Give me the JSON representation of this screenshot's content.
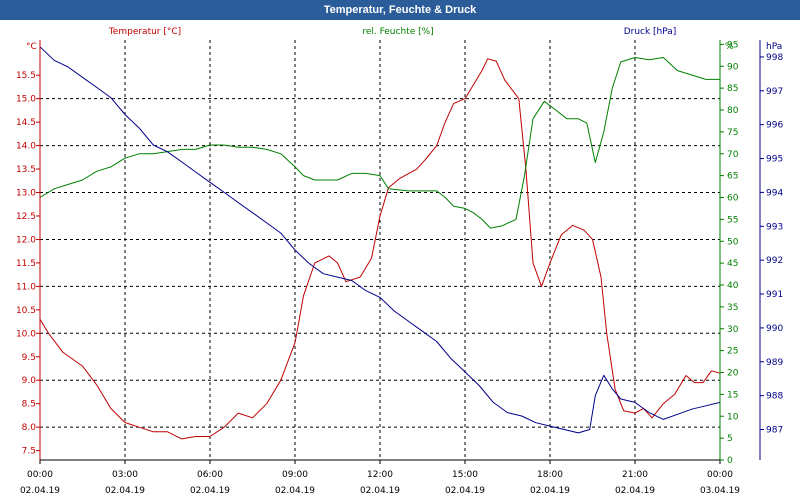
{
  "window": {
    "title": "Temperatur, Feuchte & Druck"
  },
  "chart_data": {
    "type": "line",
    "title": "Temperatur, Feuchte & Druck",
    "x_ticks": [
      {
        "time": "00:00",
        "date": "02.04.19"
      },
      {
        "time": "03:00",
        "date": "02.04.19"
      },
      {
        "time": "06:00",
        "date": "02.04.19"
      },
      {
        "time": "09:00",
        "date": "02.04.19"
      },
      {
        "time": "12:00",
        "date": "02.04.19"
      },
      {
        "time": "15:00",
        "date": "02.04.19"
      },
      {
        "time": "18:00",
        "date": "02.04.19"
      },
      {
        "time": "21:00",
        "date": "02.04.19"
      },
      {
        "time": "00:00",
        "date": "03.04.19"
      }
    ],
    "xlim": [
      0,
      24
    ],
    "grid": true,
    "axes": {
      "temp": {
        "label": "Temperatur [°C]",
        "unit": "°C",
        "color": "#c00000",
        "ylim": [
          7.3,
          16.25
        ],
        "ticks": [
          "7.5",
          "8.0",
          "8.5",
          "9.0",
          "9.5",
          "10.0",
          "10.5",
          "11.0",
          "11.5",
          "12.0",
          "12.5",
          "13.0",
          "13.5",
          "14.0",
          "14.5",
          "15.0",
          "15.5"
        ]
      },
      "hum": {
        "label": "rel. Feuchte [%]",
        "unit": "%",
        "color": "#008000",
        "ylim": [
          0,
          96
        ],
        "ticks": [
          "0",
          "5",
          "10",
          "15",
          "20",
          "25",
          "30",
          "35",
          "40",
          "45",
          "50",
          "55",
          "60",
          "65",
          "70",
          "75",
          "80",
          "85",
          "90",
          "95"
        ]
      },
      "press": {
        "label": "Druck [hPa]",
        "unit": "hPa",
        "color": "#00008b",
        "ylim": [
          986.1,
          998.5
        ],
        "ticks": [
          "987",
          "988",
          "989",
          "990",
          "991",
          "992",
          "993",
          "994",
          "995",
          "996",
          "997",
          "998"
        ]
      }
    },
    "series": [
      {
        "name": "Temperatur [°C]",
        "axis": "temp",
        "points": [
          [
            0,
            10.3
          ],
          [
            0.3,
            10.0
          ],
          [
            0.8,
            9.6
          ],
          [
            1.5,
            9.3
          ],
          [
            2.0,
            8.9
          ],
          [
            2.5,
            8.4
          ],
          [
            3.0,
            8.1
          ],
          [
            3.5,
            8.0
          ],
          [
            4.0,
            7.9
          ],
          [
            4.5,
            7.9
          ],
          [
            5.0,
            7.75
          ],
          [
            5.5,
            7.8
          ],
          [
            6.0,
            7.8
          ],
          [
            6.5,
            8.0
          ],
          [
            7.0,
            8.3
          ],
          [
            7.5,
            8.2
          ],
          [
            8.0,
            8.5
          ],
          [
            8.5,
            9.0
          ],
          [
            9.0,
            9.8
          ],
          [
            9.3,
            10.8
          ],
          [
            9.7,
            11.5
          ],
          [
            10.2,
            11.65
          ],
          [
            10.5,
            11.5
          ],
          [
            10.8,
            11.1
          ],
          [
            11.3,
            11.2
          ],
          [
            11.7,
            11.6
          ],
          [
            12.0,
            12.5
          ],
          [
            12.3,
            13.1
          ],
          [
            12.7,
            13.3
          ],
          [
            13.0,
            13.4
          ],
          [
            13.3,
            13.5
          ],
          [
            13.6,
            13.7
          ],
          [
            14.0,
            14.0
          ],
          [
            14.3,
            14.5
          ],
          [
            14.6,
            14.9
          ],
          [
            15.0,
            15.0
          ],
          [
            15.3,
            15.3
          ],
          [
            15.6,
            15.6
          ],
          [
            15.8,
            15.85
          ],
          [
            16.1,
            15.8
          ],
          [
            16.4,
            15.4
          ],
          [
            16.9,
            15.0
          ],
          [
            17.15,
            13.5
          ],
          [
            17.4,
            11.5
          ],
          [
            17.7,
            11.0
          ],
          [
            18.0,
            11.5
          ],
          [
            18.4,
            12.1
          ],
          [
            18.8,
            12.3
          ],
          [
            19.2,
            12.2
          ],
          [
            19.5,
            12.0
          ],
          [
            19.8,
            11.2
          ],
          [
            20.0,
            10.0
          ],
          [
            20.3,
            8.8
          ],
          [
            20.6,
            8.35
          ],
          [
            21.0,
            8.3
          ],
          [
            21.3,
            8.4
          ],
          [
            21.6,
            8.2
          ],
          [
            22.0,
            8.5
          ],
          [
            22.4,
            8.7
          ],
          [
            22.8,
            9.1
          ],
          [
            23.1,
            8.95
          ],
          [
            23.4,
            8.95
          ],
          [
            23.7,
            9.2
          ],
          [
            24.0,
            9.15
          ]
        ]
      },
      {
        "name": "rel. Feuchte [%]",
        "axis": "hum",
        "points": [
          [
            0,
            60
          ],
          [
            0.5,
            62
          ],
          [
            1,
            63
          ],
          [
            1.5,
            64
          ],
          [
            2,
            66
          ],
          [
            2.5,
            67
          ],
          [
            3,
            69
          ],
          [
            3.5,
            70
          ],
          [
            4,
            70
          ],
          [
            4.5,
            70.5
          ],
          [
            5,
            71
          ],
          [
            5.5,
            71
          ],
          [
            6,
            72
          ],
          [
            6.5,
            72
          ],
          [
            7,
            71.5
          ],
          [
            7.5,
            71.5
          ],
          [
            8,
            71
          ],
          [
            8.5,
            70
          ],
          [
            9,
            67
          ],
          [
            9.3,
            65
          ],
          [
            9.7,
            64
          ],
          [
            10.5,
            64
          ],
          [
            11.0,
            65.5
          ],
          [
            11.5,
            65.5
          ],
          [
            12.0,
            65
          ],
          [
            12.3,
            62
          ],
          [
            13,
            61.5
          ],
          [
            14,
            61.5
          ],
          [
            14.3,
            60
          ],
          [
            14.6,
            58
          ],
          [
            15,
            57.5
          ],
          [
            15.3,
            56.5
          ],
          [
            15.6,
            55
          ],
          [
            15.9,
            53
          ],
          [
            16.3,
            53.5
          ],
          [
            16.8,
            55
          ],
          [
            17.1,
            65
          ],
          [
            17.4,
            78
          ],
          [
            17.8,
            82
          ],
          [
            18.2,
            80
          ],
          [
            18.6,
            78
          ],
          [
            19.0,
            78
          ],
          [
            19.3,
            77
          ],
          [
            19.6,
            68
          ],
          [
            19.9,
            75
          ],
          [
            20.2,
            85
          ],
          [
            20.5,
            91
          ],
          [
            21.0,
            92
          ],
          [
            21.5,
            91.5
          ],
          [
            22.0,
            92
          ],
          [
            22.5,
            89
          ],
          [
            23.0,
            88
          ],
          [
            23.5,
            87
          ],
          [
            24.0,
            87
          ]
        ]
      },
      {
        "name": "Druck [hPa]",
        "axis": "press",
        "points": [
          [
            0,
            998.3
          ],
          [
            0.5,
            997.9
          ],
          [
            1,
            997.7
          ],
          [
            1.5,
            997.4
          ],
          [
            2,
            997.1
          ],
          [
            2.5,
            996.8
          ],
          [
            3,
            996.3
          ],
          [
            3.5,
            995.9
          ],
          [
            4,
            995.4
          ],
          [
            4.5,
            995.2
          ],
          [
            5,
            994.9
          ],
          [
            5.5,
            994.6
          ],
          [
            6,
            994.3
          ],
          [
            6.5,
            994.0
          ],
          [
            7,
            993.7
          ],
          [
            7.5,
            993.4
          ],
          [
            8,
            993.1
          ],
          [
            8.5,
            992.8
          ],
          [
            9,
            992.3
          ],
          [
            9.5,
            991.9
          ],
          [
            10,
            991.6
          ],
          [
            10.5,
            991.5
          ],
          [
            11,
            991.4
          ],
          [
            11.5,
            991.1
          ],
          [
            12,
            990.9
          ],
          [
            12.5,
            990.5
          ],
          [
            13,
            990.2
          ],
          [
            13.5,
            989.9
          ],
          [
            14,
            989.6
          ],
          [
            14.5,
            989.1
          ],
          [
            15,
            988.7
          ],
          [
            15.5,
            988.3
          ],
          [
            16,
            987.8
          ],
          [
            16.5,
            987.5
          ],
          [
            17,
            987.4
          ],
          [
            17.5,
            987.2
          ],
          [
            18,
            987.1
          ],
          [
            18.5,
            987.0
          ],
          [
            19,
            986.9
          ],
          [
            19.4,
            987.0
          ],
          [
            19.6,
            988.0
          ],
          [
            19.9,
            988.6
          ],
          [
            20.2,
            988.2
          ],
          [
            20.5,
            987.9
          ],
          [
            21,
            987.8
          ],
          [
            21.5,
            987.5
          ],
          [
            22,
            987.3
          ],
          [
            22.5,
            987.45
          ],
          [
            23,
            987.6
          ],
          [
            23.5,
            987.7
          ],
          [
            24,
            987.8
          ]
        ]
      }
    ]
  }
}
